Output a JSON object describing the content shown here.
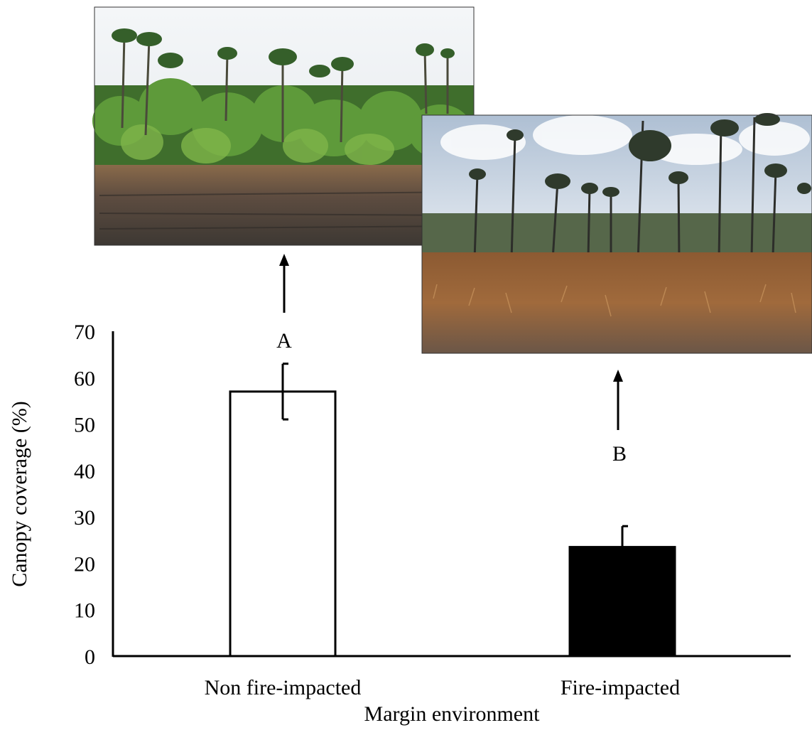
{
  "chart_data": {
    "type": "bar",
    "title": "",
    "xlabel": "Margin environment",
    "ylabel": "Canopy coverage (%)",
    "ylim": [
      0,
      70
    ],
    "yticks": [
      0,
      10,
      20,
      30,
      40,
      50,
      60,
      70
    ],
    "grid": false,
    "categories": [
      "Non fire-impacted",
      "Fire-impacted"
    ],
    "values": [
      57,
      23.5
    ],
    "errors": [
      6,
      4.5
    ],
    "bar_colors": [
      "#ffffff",
      "#000000"
    ],
    "significance_letters": [
      "A",
      "B"
    ]
  },
  "photos": [
    {
      "name": "non-fire-impacted-margin-photo",
      "depicts": "forest margin with palms and green vegetation behind burnt ground"
    },
    {
      "name": "fire-impacted-margin-photo",
      "depicts": "sparse palms over dry burnt grassland under cloudy sky"
    }
  ]
}
